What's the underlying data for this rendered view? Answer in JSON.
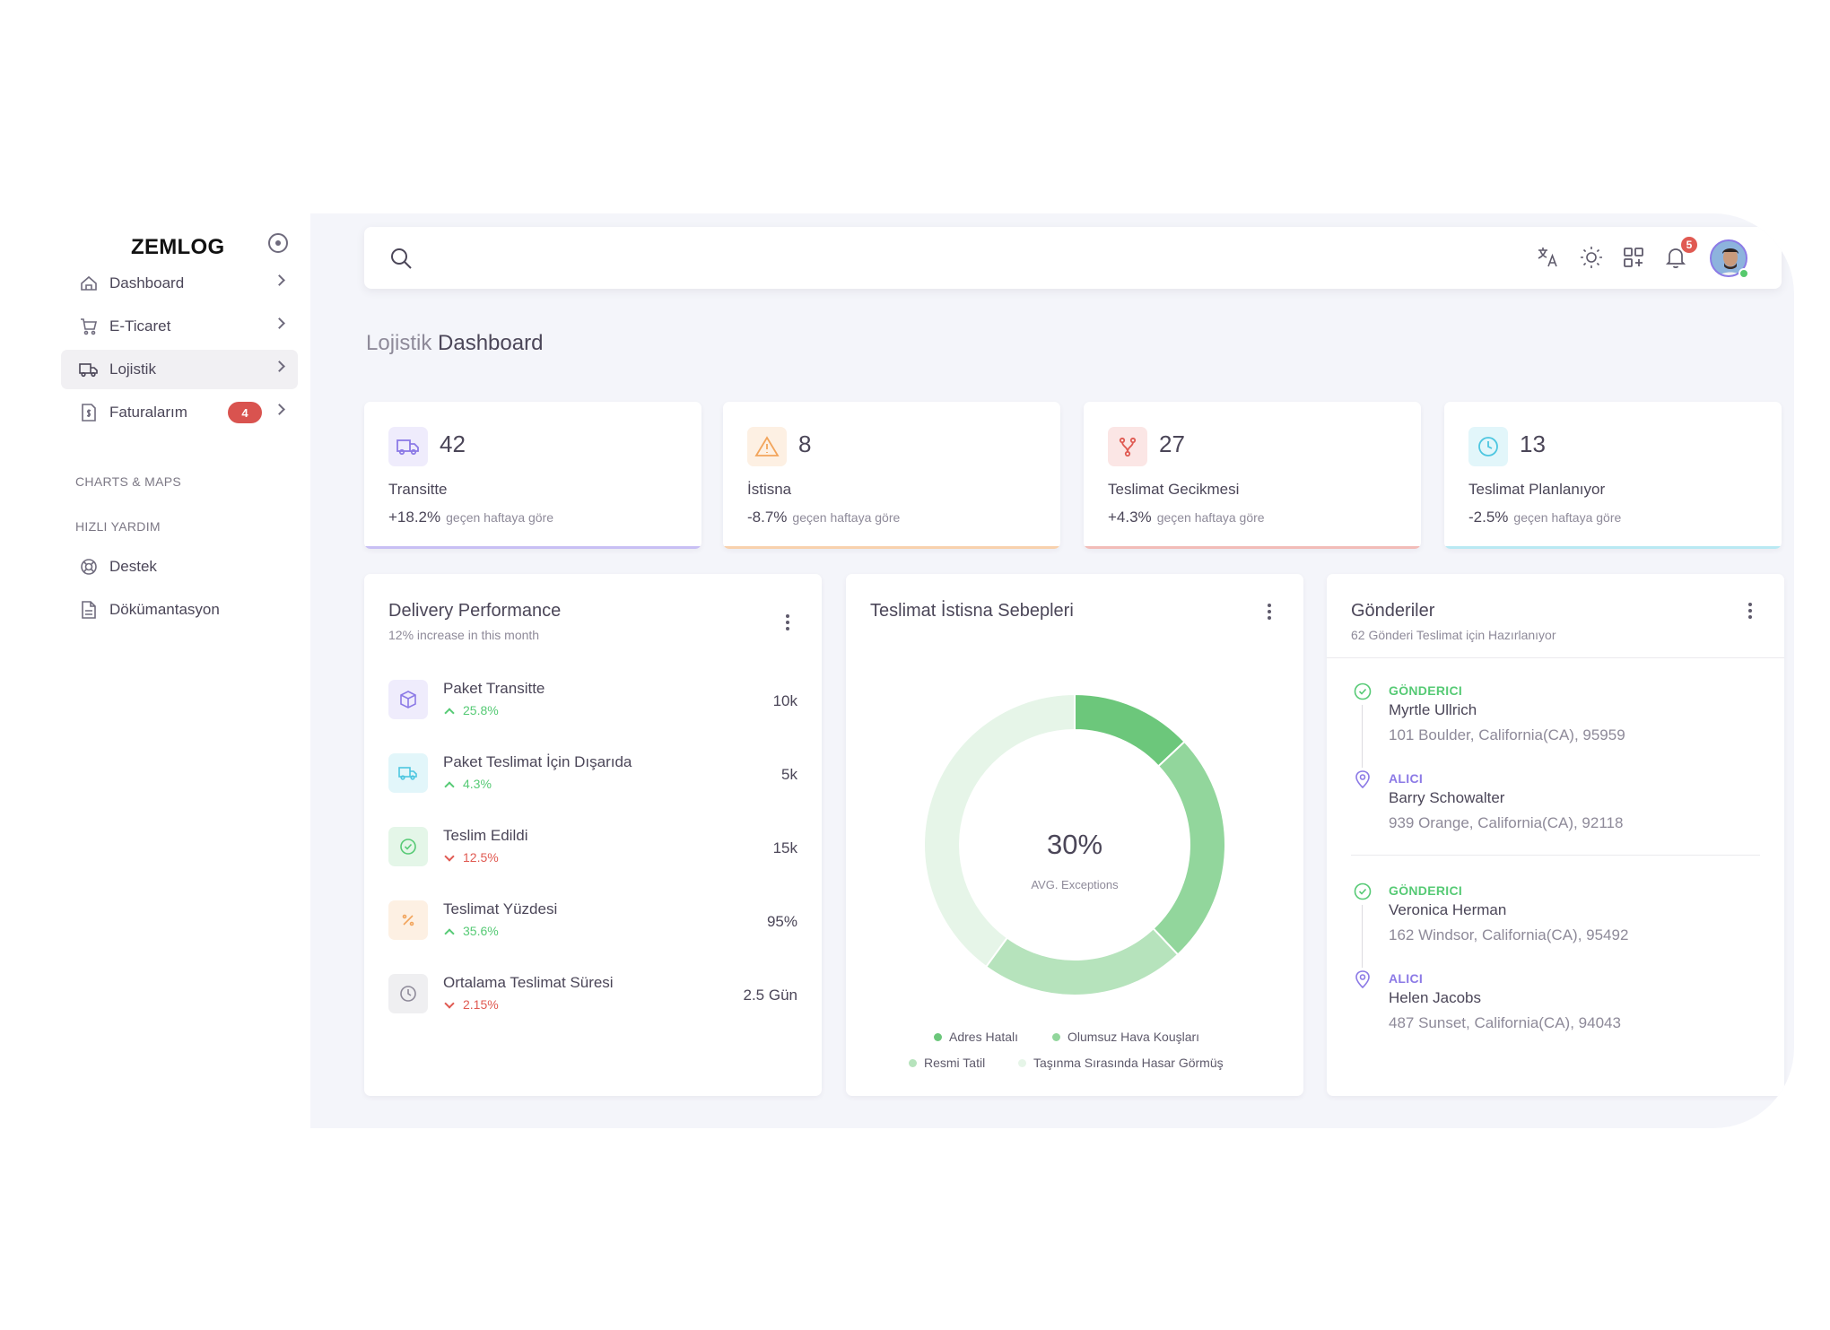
{
  "brand": "ZEMLOG",
  "sidebar": {
    "items": [
      {
        "label": "Dashboard"
      },
      {
        "label": "E-Ticaret"
      },
      {
        "label": "Lojistik"
      },
      {
        "label": "Faturalarım",
        "badge": "4"
      }
    ],
    "section_charts": "CHARTS & MAPS",
    "section_help": "HIZLI YARDIM",
    "help_items": [
      {
        "label": "Destek"
      },
      {
        "label": "Dökümantasyon"
      }
    ]
  },
  "topbar": {
    "notification_count": "5"
  },
  "page_title": {
    "prefix": "Lojistik",
    "main": "Dashboard"
  },
  "stats": [
    {
      "value": "42",
      "label": "Transitte",
      "change": "+18.2%",
      "note": "geçen haftaya göre",
      "color": "#8c7ae6"
    },
    {
      "value": "8",
      "label": "İstisna",
      "change": "-8.7%",
      "note": "geçen haftaya göre",
      "color": "#f2a45b"
    },
    {
      "value": "27",
      "label": "Teslimat Gecikmesi",
      "change": "+4.3%",
      "note": "geçen haftaya göre",
      "color": "#e05a52"
    },
    {
      "value": "13",
      "label": "Teslimat Planlanıyor",
      "change": "-2.5%",
      "note": "geçen haftaya göre",
      "color": "#4dc6e0"
    }
  ],
  "performance": {
    "title": "Delivery Performance",
    "subtitle": "12% increase in this month",
    "rows": [
      {
        "name": "Paket Transitte",
        "trend": "25.8%",
        "direction": "up",
        "value": "10k"
      },
      {
        "name": "Paket Teslimat İçin Dışarıda",
        "trend": "4.3%",
        "direction": "up",
        "value": "5k"
      },
      {
        "name": "Teslim Edildi",
        "trend": "12.5%",
        "direction": "down",
        "value": "15k"
      },
      {
        "name": "Teslimat Yüzdesi",
        "trend": "35.6%",
        "direction": "up",
        "value": "95%"
      },
      {
        "name": "Ortalama Teslimat Süresi",
        "trend": "2.15%",
        "direction": "down",
        "value": "2.5 Gün"
      }
    ]
  },
  "exceptions": {
    "title": "Teslimat İstisna Sebepleri",
    "center_value": "30%",
    "center_label": "AVG. Exceptions",
    "legend": [
      {
        "name": "Adres Hatalı",
        "color": "#6cc77b"
      },
      {
        "name": "Olumsuz Hava Kouşları",
        "color": "#92d69c"
      },
      {
        "name": "Resmi Tatil",
        "color": "#b6e3bc"
      },
      {
        "name": "Taşınma Sırasında Hasar Görmüş",
        "color": "#e6f5e8"
      }
    ]
  },
  "chart_data": {
    "type": "pie",
    "center_value": "30%",
    "center_label": "AVG. Exceptions",
    "categories": [
      "Adres Hatalı",
      "Olumsuz Hava Kouşları",
      "Resmi Tatil",
      "Taşınma Sırasında Hasar Görmüş"
    ],
    "values": [
      13,
      25,
      22,
      40
    ]
  },
  "shipments": {
    "title": "Gönderiler",
    "subtitle": "62 Gönderi Teslimat için Hazırlanıyor",
    "entries": [
      {
        "sender_role": "GÖNDERICI",
        "sender_name": "Myrtle Ullrich",
        "sender_address": "101 Boulder, California(CA), 95959",
        "receiver_role": "ALICI",
        "receiver_name": "Barry Schowalter",
        "receiver_address": "939 Orange, California(CA), 92118"
      },
      {
        "sender_role": "GÖNDERICI",
        "sender_name": "Veronica Herman",
        "sender_address": "162 Windsor, California(CA), 95492",
        "receiver_role": "ALICI",
        "receiver_name": "Helen Jacobs",
        "receiver_address": "487 Sunset, California(CA), 94043"
      }
    ]
  }
}
